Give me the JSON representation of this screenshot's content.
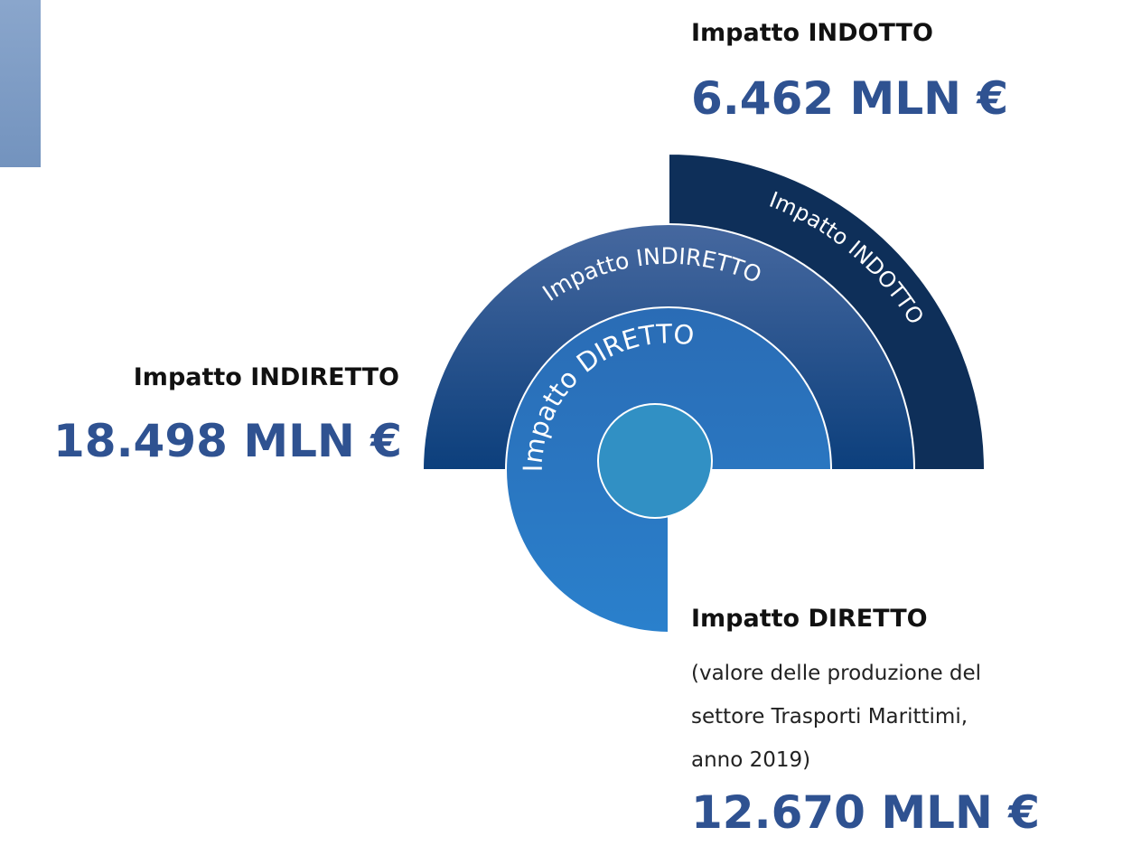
{
  "indotto": {
    "title": "Impatto INDOTTO",
    "amount": "6.462 MLN €"
  },
  "indiretto": {
    "title": "Impatto INDIRETTO",
    "amount": "18.498 MLN €"
  },
  "diretto": {
    "title": "Impatto DIRETTO",
    "description": [
      "(valore delle produzione del",
      "settore Trasporti Marittimi,",
      "anno 2019)"
    ],
    "amount": "12.670 MLN €"
  },
  "diagram": {
    "rings": [
      {
        "label": "Impatto INDOTTO"
      },
      {
        "label": "Impatto INDIRETTO"
      },
      {
        "label": "Impatto DIRETTO"
      }
    ]
  }
}
